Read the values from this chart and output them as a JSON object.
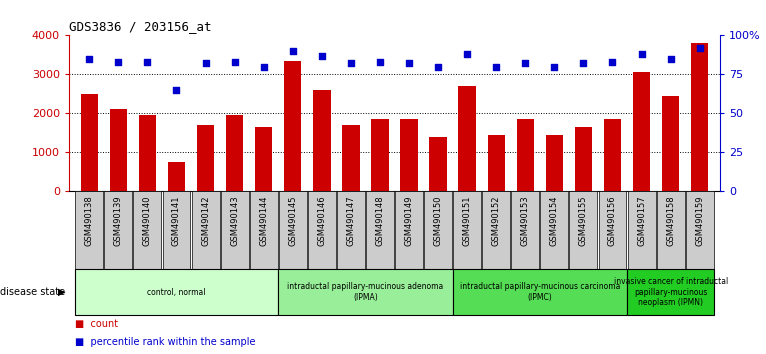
{
  "title": "GDS3836 / 203156_at",
  "samples": [
    "GSM490138",
    "GSM490139",
    "GSM490140",
    "GSM490141",
    "GSM490142",
    "GSM490143",
    "GSM490144",
    "GSM490145",
    "GSM490146",
    "GSM490147",
    "GSM490148",
    "GSM490149",
    "GSM490150",
    "GSM490151",
    "GSM490152",
    "GSM490153",
    "GSM490154",
    "GSM490155",
    "GSM490156",
    "GSM490157",
    "GSM490158",
    "GSM490159"
  ],
  "counts": [
    2500,
    2100,
    1950,
    750,
    1700,
    1950,
    1650,
    3350,
    2600,
    1700,
    1850,
    1850,
    1400,
    2700,
    1450,
    1850,
    1450,
    1650,
    1850,
    3050,
    2450,
    3800
  ],
  "percentiles": [
    85,
    83,
    83,
    65,
    82,
    83,
    80,
    90,
    87,
    82,
    83,
    82,
    80,
    88,
    80,
    82,
    80,
    82,
    83,
    88,
    85,
    92
  ],
  "bar_color": "#cc0000",
  "dot_color": "#0000cc",
  "ylim_left": [
    0,
    4000
  ],
  "ylim_right": [
    0,
    100
  ],
  "yticks_left": [
    0,
    1000,
    2000,
    3000,
    4000
  ],
  "yticks_right": [
    0,
    25,
    50,
    75,
    100
  ],
  "yticklabels_right": [
    "0",
    "25",
    "50",
    "75",
    "100%"
  ],
  "grid_values": [
    1000,
    2000,
    3000
  ],
  "groups": [
    {
      "label": "control, normal",
      "start": 0,
      "end": 7,
      "color": "#ccffcc",
      "darker": "#aaddaa"
    },
    {
      "label": "intraductal papillary-mucinous adenoma\n(IPMA)",
      "start": 7,
      "end": 13,
      "color": "#99ee99",
      "darker": "#88cc88"
    },
    {
      "label": "intraductal papillary-mucinous carcinoma\n(IPMC)",
      "start": 13,
      "end": 19,
      "color": "#55dd55",
      "darker": "#44bb44"
    },
    {
      "label": "invasive cancer of intraductal\npapillary-mucinous\nneoplasm (IPMN)",
      "start": 19,
      "end": 22,
      "color": "#22cc22",
      "darker": "#11aa11"
    }
  ],
  "disease_state_label": "disease state",
  "plot_bg_color": "#ffffff",
  "tick_label_bg": "#d0d0d0",
  "figure_bg": "#ffffff"
}
